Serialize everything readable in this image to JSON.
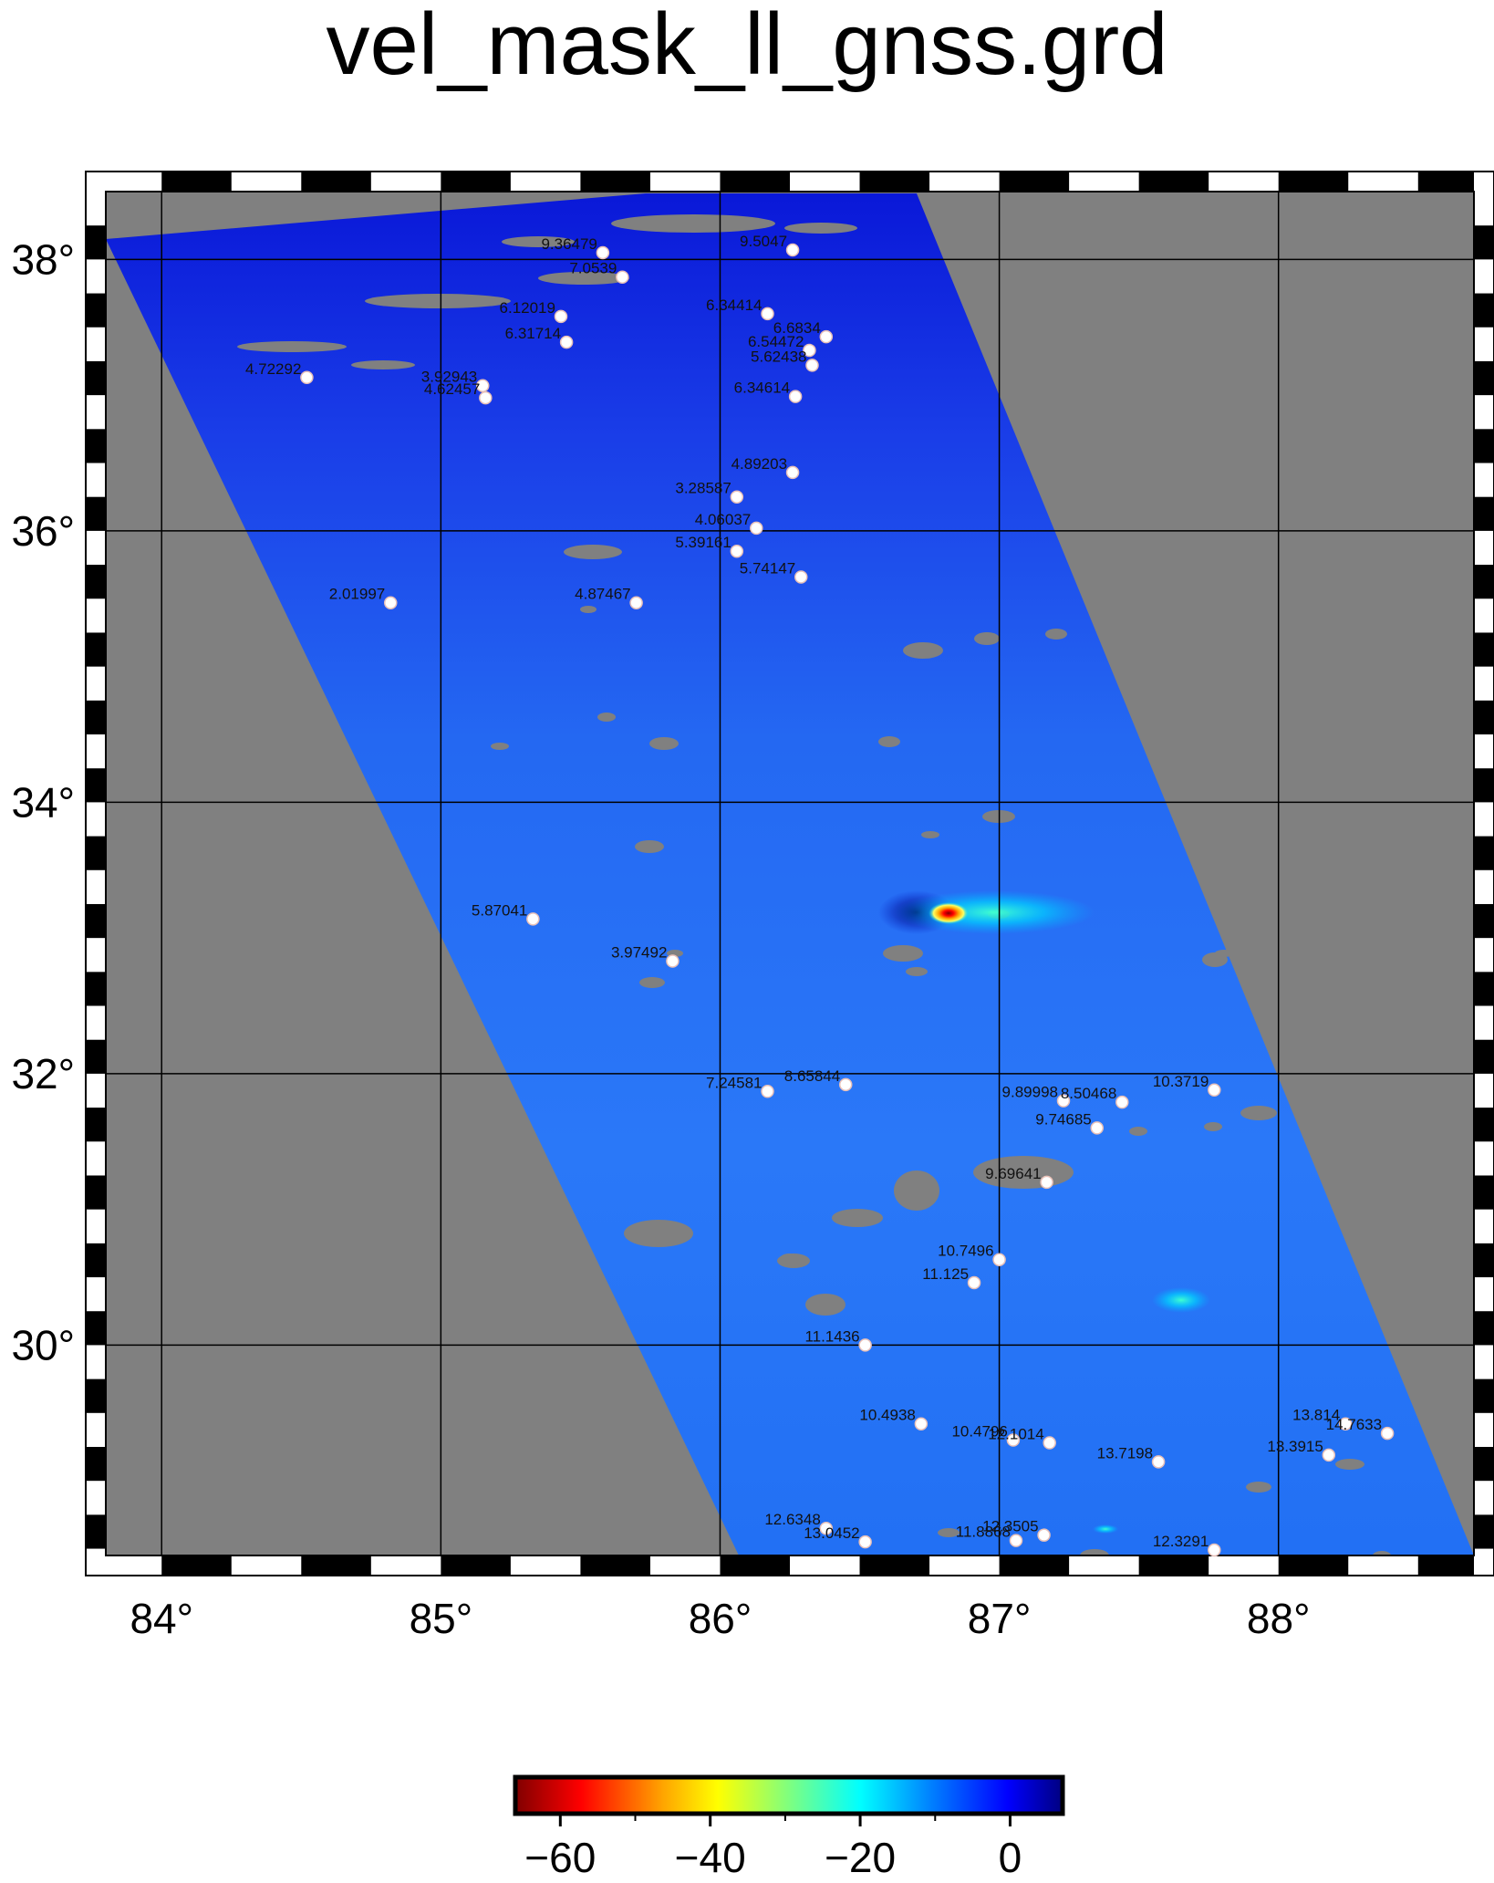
{
  "title": "vel_mask_ll_gnss.grd",
  "map": {
    "lon_range": [
      83.8,
      88.7
    ],
    "lat_range": [
      28.45,
      38.5
    ],
    "x_ticks": [
      {
        "value": 84,
        "label": "84°"
      },
      {
        "value": 85,
        "label": "85°"
      },
      {
        "value": 86,
        "label": "86°"
      },
      {
        "value": 87,
        "label": "87°"
      },
      {
        "value": 88,
        "label": "88°"
      }
    ],
    "y_ticks": [
      {
        "value": 30,
        "label": "30°"
      },
      {
        "value": 32,
        "label": "32°"
      },
      {
        "value": 34,
        "label": "34°"
      },
      {
        "value": 36,
        "label": "36°"
      },
      {
        "value": 38,
        "label": "38°"
      }
    ],
    "nodata_color": "#808080",
    "frame": "checkered black and white",
    "grid": true
  },
  "colorbar": {
    "range": [
      -66,
      7
    ],
    "ticks": [
      {
        "value": -60,
        "label": "−60"
      },
      {
        "value": -40,
        "label": "−40"
      },
      {
        "value": -20,
        "label": "−20"
      },
      {
        "value": 0,
        "label": "0"
      }
    ],
    "colors": [
      "#800000",
      "#ff0000",
      "#ffa500",
      "#ffff00",
      "#7fff7f",
      "#00ffff",
      "#0080ff",
      "#0000ff",
      "#000080"
    ]
  },
  "stations": [
    {
      "label": "9.36479",
      "lon": 85.58,
      "lat": 38.05
    },
    {
      "label": "9.5047",
      "lon": 86.26,
      "lat": 38.07
    },
    {
      "label": "7.0539",
      "lon": 85.65,
      "lat": 37.87
    },
    {
      "label": "6.12019",
      "lon": 85.43,
      "lat": 37.58
    },
    {
      "label": "6.34414",
      "lon": 86.17,
      "lat": 37.6
    },
    {
      "label": "6.31714",
      "lon": 85.45,
      "lat": 37.39
    },
    {
      "label": "6.6834",
      "lon": 86.38,
      "lat": 37.43
    },
    {
      "label": "6.54472",
      "lon": 86.32,
      "lat": 37.33
    },
    {
      "label": "5.62438",
      "lon": 86.33,
      "lat": 37.22
    },
    {
      "label": "4.72292",
      "lon": 84.52,
      "lat": 37.13
    },
    {
      "label": "3.92943",
      "lon": 85.15,
      "lat": 37.07
    },
    {
      "label": "4.62457",
      "lon": 85.16,
      "lat": 36.98
    },
    {
      "label": "6.34614",
      "lon": 86.27,
      "lat": 36.99
    },
    {
      "label": "4.89203",
      "lon": 86.26,
      "lat": 36.43
    },
    {
      "label": "3.28587",
      "lon": 86.06,
      "lat": 36.25
    },
    {
      "label": "4.06037",
      "lon": 86.13,
      "lat": 36.02
    },
    {
      "label": "5.39161",
      "lon": 86.06,
      "lat": 35.85
    },
    {
      "label": "5.74147",
      "lon": 86.29,
      "lat": 35.66
    },
    {
      "label": "2.01997",
      "lon": 84.82,
      "lat": 35.47
    },
    {
      "label": "4.87467",
      "lon": 85.7,
      "lat": 35.47
    },
    {
      "label": "5.87041",
      "lon": 85.33,
      "lat": 33.14
    },
    {
      "label": "3.97492",
      "lon": 85.83,
      "lat": 32.83
    },
    {
      "label": "7.24581",
      "lon": 86.17,
      "lat": 31.87
    },
    {
      "label": "8.65844",
      "lon": 86.45,
      "lat": 31.92
    },
    {
      "label": "9.89998",
      "lon": 87.23,
      "lat": 31.8
    },
    {
      "label": "8.50468",
      "lon": 87.44,
      "lat": 31.79
    },
    {
      "label": "10.3719",
      "lon": 87.77,
      "lat": 31.88
    },
    {
      "label": "9.74685",
      "lon": 87.35,
      "lat": 31.6
    },
    {
      "label": "9.69641",
      "lon": 87.17,
      "lat": 31.2
    },
    {
      "label": "10.7496",
      "lon": 87.0,
      "lat": 30.63
    },
    {
      "label": "11.125",
      "lon": 86.91,
      "lat": 30.46
    },
    {
      "label": "11.1436",
      "lon": 86.52,
      "lat": 30.0
    },
    {
      "label": "10.4938",
      "lon": 86.72,
      "lat": 29.42
    },
    {
      "label": "10.4796",
      "lon": 87.05,
      "lat": 29.3
    },
    {
      "label": "12.1014",
      "lon": 87.18,
      "lat": 29.28
    },
    {
      "label": "13.814",
      "lon": 88.24,
      "lat": 29.42
    },
    {
      "label": "14.7633",
      "lon": 88.39,
      "lat": 29.35
    },
    {
      "label": "13.3915",
      "lon": 88.18,
      "lat": 29.19
    },
    {
      "label": "13.7198",
      "lon": 87.57,
      "lat": 29.14
    },
    {
      "label": "12.6348",
      "lon": 86.38,
      "lat": 28.65
    },
    {
      "label": "13.0452",
      "lon": 86.52,
      "lat": 28.55
    },
    {
      "label": "12.3505",
      "lon": 87.16,
      "lat": 28.6
    },
    {
      "label": "11.8868",
      "lon": 87.06,
      "lat": 28.56
    },
    {
      "label": "12.3291",
      "lon": 87.77,
      "lat": 28.49
    }
  ]
}
